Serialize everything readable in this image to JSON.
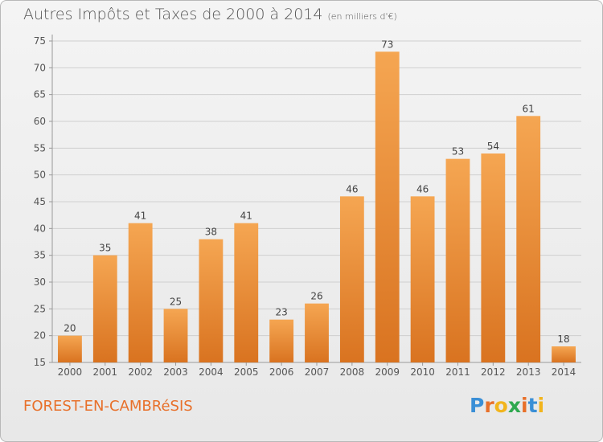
{
  "chart_data": {
    "type": "bar",
    "title": "Autres Impôts et Taxes de 2000 à 2014",
    "subtitle": "(en milliers d'€)",
    "categories": [
      "2000",
      "2001",
      "2002",
      "2003",
      "2004",
      "2005",
      "2006",
      "2007",
      "2008",
      "2009",
      "2010",
      "2011",
      "2012",
      "2013",
      "2014"
    ],
    "values": [
      20,
      35,
      41,
      25,
      38,
      41,
      23,
      26,
      46,
      73,
      46,
      53,
      54,
      61,
      18
    ],
    "ylim": [
      15,
      75
    ],
    "yticks": [
      15,
      20,
      25,
      30,
      35,
      40,
      45,
      50,
      55,
      60,
      65,
      70,
      75
    ],
    "grid": true,
    "bar_color_top": "#f5a652",
    "bar_color_bottom": "#d97320"
  },
  "footer": {
    "commune": "FOREST-EN-CAMBRéSIS",
    "logo_letters": [
      "P",
      "r",
      "o",
      "x",
      "i",
      "t",
      "i"
    ],
    "logo_colors": [
      "#3a8fd6",
      "#e8702a",
      "#f2b51d",
      "#2fa84f",
      "#e8702a",
      "#3a8fd6",
      "#f2b51d"
    ]
  }
}
